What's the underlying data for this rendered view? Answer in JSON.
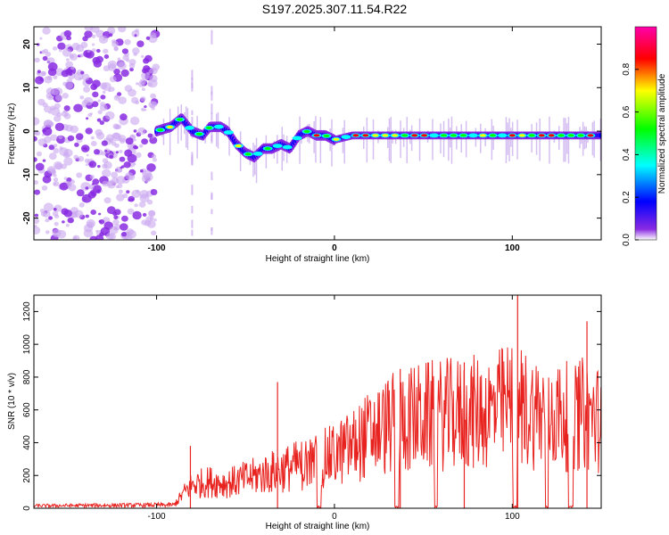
{
  "title": "S197.2025.307.11.54.R22",
  "chart_data": [
    {
      "type": "heatmap",
      "name": "spectrogram",
      "xlabel": "Height of straight line (km)",
      "ylabel": "Frequency (Hz)",
      "xlim": [
        -169,
        150
      ],
      "ylim": [
        -25,
        24
      ],
      "xticks": [
        -100,
        0,
        100
      ],
      "xtick_labels": [
        "-100",
        "0",
        "100"
      ],
      "yticks": [
        -20,
        -10,
        0,
        10,
        20
      ],
      "ytick_labels": [
        "-20",
        "-10",
        "0",
        "10",
        "20"
      ],
      "ridge": {
        "x": [
          -100,
          -92,
          -86,
          -80,
          -74,
          -70,
          -64,
          -60,
          -55,
          -50,
          -45,
          -40,
          -35,
          -30,
          -25,
          -20,
          -15,
          -10,
          -5,
          0,
          10,
          20,
          40,
          60,
          80,
          100,
          120,
          150
        ],
        "y": [
          0,
          1,
          3,
          0,
          -1,
          1,
          1,
          0,
          -3,
          -5,
          -6,
          -4,
          -4,
          -3,
          -4,
          -1,
          0,
          -1,
          -1,
          -2,
          -1,
          -1,
          -1,
          -1,
          -1,
          -1,
          -1,
          -1
        ]
      },
      "noise_region_x": [
        -169,
        -100
      ],
      "colorbar": {
        "label": "Normalized spectral amplitude",
        "range": [
          0,
          1
        ],
        "ticks": [
          0,
          0.2,
          0.4,
          0.6,
          0.8
        ],
        "tick_labels": [
          "0.0",
          "0.2",
          "0.4",
          "0.6",
          "0.8"
        ],
        "colors": [
          "#ffffff",
          "#8a2be2",
          "#0000ff",
          "#00ffff",
          "#00ff00",
          "#ffff00",
          "#ff0000",
          "#ff00aa"
        ]
      }
    },
    {
      "type": "line",
      "name": "snr",
      "xlabel": "Height of straight line (km)",
      "ylabel": "SNR (10 * v/v)",
      "xlim": [
        -169,
        150
      ],
      "ylim": [
        0,
        1300
      ],
      "xticks": [
        -100,
        0,
        100
      ],
      "xtick_labels": [
        "-100",
        "0",
        "100"
      ],
      "yticks": [
        0,
        200,
        400,
        600,
        800,
        1000,
        1200
      ],
      "ytick_labels": [
        "0",
        "200",
        "400",
        "600",
        "800",
        "1000",
        "1200"
      ],
      "color": "#e8231f",
      "trend": {
        "x": [
          -169,
          -90,
          -85,
          -80,
          -70,
          -60,
          -50,
          -40,
          -30,
          -20,
          -10,
          0,
          10,
          20,
          30,
          40,
          50,
          60,
          70,
          80,
          90,
          100,
          110,
          120,
          130,
          140,
          150
        ],
        "y": [
          15,
          20,
          100,
          160,
          180,
          170,
          200,
          230,
          260,
          290,
          320,
          360,
          420,
          500,
          560,
          600,
          620,
          630,
          640,
          650,
          660,
          720,
          660,
          640,
          620,
          640,
          600
        ]
      },
      "spikes": [
        {
          "x": -81,
          "y": 380
        },
        {
          "x": -32,
          "y": 770
        },
        {
          "x": 37,
          "y": 850
        },
        {
          "x": 73,
          "y": 890
        },
        {
          "x": 103,
          "y": 1300
        },
        {
          "x": 142,
          "y": 1140
        }
      ]
    }
  ]
}
